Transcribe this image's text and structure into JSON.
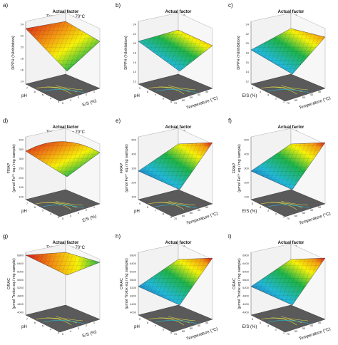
{
  "panels": [
    {
      "letter": "a)",
      "header": "Actual factor",
      "condition": "Temperature = 70°C",
      "zlabel": [
        "DPPH (%Inhibition)"
      ],
      "xlabel": "pH",
      "ylabel": "E/S (%)",
      "zticks": [
        "14",
        "16",
        "18",
        "20",
        "22",
        "24"
      ],
      "xticks": [
        "7",
        "6",
        "5",
        "4",
        "3"
      ],
      "yticks": [
        "5",
        "4",
        "3",
        "2",
        "1"
      ],
      "shape": "tiltL",
      "grad": "g1"
    },
    {
      "letter": "b)",
      "header": "Actual factor",
      "condition": "E/S = 2",
      "zlabel": [
        "DPPH (%Inhibition)"
      ],
      "xlabel": "pH",
      "ylabel": "Temperature (°C)",
      "zticks": [
        "12",
        "14",
        "16",
        "18",
        "20",
        "22",
        "24"
      ],
      "xticks": [
        "9",
        "8",
        "7",
        "6",
        "5"
      ],
      "yticks": [
        "70",
        "60",
        "50",
        "40",
        "30"
      ],
      "shape": "flat",
      "grad": "g2"
    },
    {
      "letter": "c)",
      "header": "Actual factor",
      "condition": "pH = 8",
      "zlabel": [
        "DPPH (%Inhibition)"
      ],
      "xlabel": "E/S (%)",
      "ylabel": "Temperature (°C)",
      "zticks": [
        "12",
        "14",
        "16",
        "18",
        "20",
        "22",
        "24"
      ],
      "xticks": [
        "5",
        "4",
        "3",
        "2",
        "1"
      ],
      "yticks": [
        "70",
        "60",
        "50",
        "40",
        "30"
      ],
      "shape": "rise",
      "grad": "g2"
    },
    {
      "letter": "d)",
      "header": "Actual factor",
      "condition": "Temperature = 70°C",
      "zlabel": [
        "FRAP",
        "(μmol Fe²⁺ eq./ mg sample)"
      ],
      "xlabel": "pH",
      "ylabel": "E/S (%)",
      "zticks": [
        "100",
        "150",
        "200",
        "250",
        "300",
        "350",
        "400"
      ],
      "xticks": [
        "7",
        "6",
        "5",
        "4",
        "3"
      ],
      "yticks": [
        "5",
        "4",
        "3",
        "2",
        "1"
      ],
      "shape": "dome",
      "grad": "g1"
    },
    {
      "letter": "e)",
      "header": "Actual factor",
      "condition": "E/S = 2",
      "zlabel": [
        "FRAP",
        "(μmol Fe²⁺ eq./ mg sample)"
      ],
      "xlabel": "pH",
      "ylabel": "Temperature (°C)",
      "zticks": [
        "100",
        "200",
        "300",
        "400",
        "500"
      ],
      "xticks": [
        "9",
        "8",
        "7",
        "6",
        "5"
      ],
      "yticks": [
        "70",
        "60",
        "50",
        "40",
        "30"
      ],
      "shape": "riseR",
      "grad": "g2"
    },
    {
      "letter": "f)",
      "header": "Actual factor",
      "condition": "pH = 8",
      "zlabel": [
        "FRAP",
        "(μmol Fe²⁺ eq./ mg sample)"
      ],
      "xlabel": "E/S (%)",
      "ylabel": "Temperature (°C)",
      "zticks": [
        "100",
        "200",
        "300",
        "400",
        "500"
      ],
      "xticks": [
        "5",
        "4",
        "3",
        "2",
        "1"
      ],
      "yticks": [
        "70",
        "60",
        "50",
        "40",
        "30"
      ],
      "shape": "riseR",
      "grad": "g2"
    },
    {
      "letter": "g)",
      "header": "Actual factor",
      "condition": "Temperature = 70°C",
      "zlabel": [
        "ORAC",
        "(μmol Trolox eq./ mg sample)"
      ],
      "xlabel": "pH",
      "ylabel": "E/S (%)",
      "zticks": [
        "4000",
        "4400",
        "4800",
        "5200",
        "5600",
        "6000",
        "6400",
        "6800"
      ],
      "xticks": [
        "7",
        "6",
        "5",
        "4",
        "3"
      ],
      "yticks": [
        "5",
        "4",
        "3",
        "2",
        "1"
      ],
      "shape": "hiFlat",
      "grad": "g3"
    },
    {
      "letter": "h)",
      "header": "Actual factor",
      "condition": "E/S = 2",
      "zlabel": [
        "ORAC",
        "(μmol Trolox eq./ mg sample)"
      ],
      "xlabel": "pH",
      "ylabel": "Temperature (°C)",
      "zticks": [
        "4000",
        "4400",
        "4800",
        "5200",
        "5600",
        "6000",
        "6400",
        "6800"
      ],
      "xticks": [
        "9",
        "8",
        "7",
        "6",
        "5"
      ],
      "yticks": [
        "70",
        "60",
        "50",
        "40",
        "30"
      ],
      "shape": "riseR",
      "grad": "g2"
    },
    {
      "letter": "i)",
      "header": "Actual factor",
      "condition": "pH = 8",
      "zlabel": [
        "ORAC",
        "(μmol Trolox eq./ mg sample)"
      ],
      "xlabel": "E/S (%)",
      "ylabel": "Temperature (°C)",
      "zticks": [
        "4000",
        "4400",
        "4800",
        "5200",
        "5600",
        "6000",
        "6400",
        "6800"
      ],
      "xticks": [
        "5",
        "4",
        "3",
        "2",
        "1"
      ],
      "yticks": [
        "70",
        "60",
        "50",
        "40",
        "30"
      ],
      "shape": "riseR",
      "grad": "g2"
    }
  ],
  "colors": {
    "red": "#d7191c",
    "orange": "#f39c12",
    "yellow": "#f6f20a",
    "green": "#1fb34a",
    "cyan": "#23b8d6",
    "blue": "#1b3fb0",
    "floor": "#5a5a5a",
    "contour": "#d8d84a"
  }
}
